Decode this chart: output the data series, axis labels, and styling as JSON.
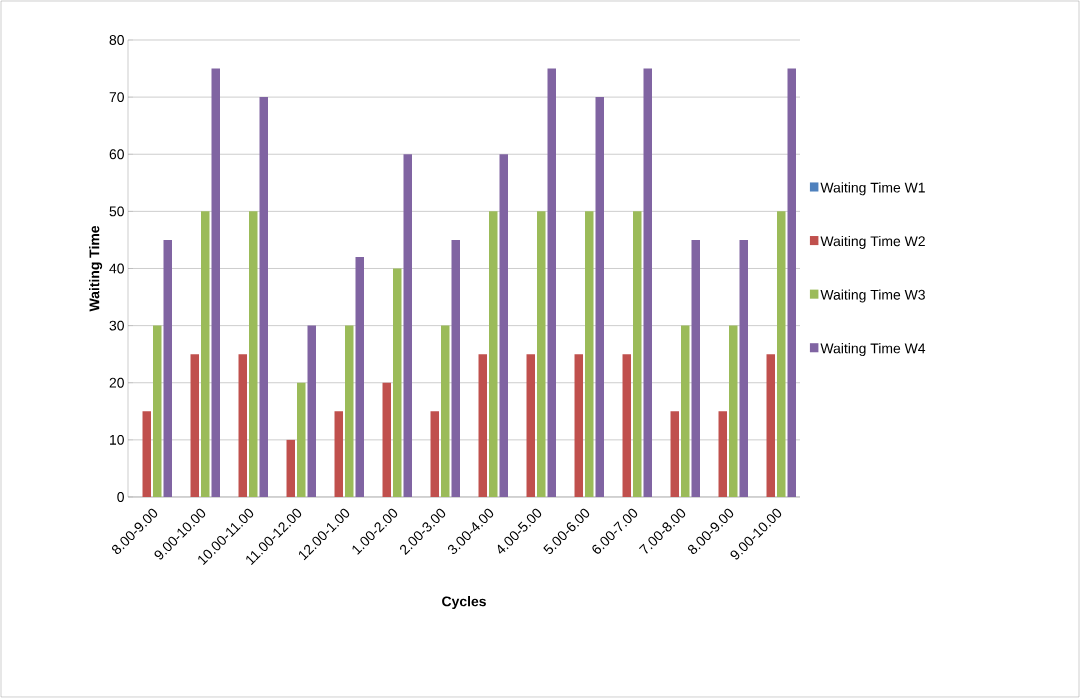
{
  "chart_data": {
    "type": "bar",
    "xlabel": "Cycles",
    "ylabel": "Waiting Time",
    "categories": [
      "8.00-9.00",
      "9.00-10.00",
      "10.00-11.00",
      "11.00-12.00",
      "12.00-1.00",
      "1.00-2.00",
      "2.00-3.00",
      "3.00-4.00",
      "4.00-5.00",
      "5.00-6.00",
      "6.00-7.00",
      "7.00-8.00",
      "8.00-9.00",
      "9.00-10.00"
    ],
    "series": [
      {
        "name": "Waiting Time W1",
        "color": "#4f81bd",
        "values": [
          0,
          0,
          0,
          0,
          0,
          0,
          0,
          0,
          0,
          0,
          0,
          0,
          0,
          0
        ]
      },
      {
        "name": "Waiting Time W2",
        "color": "#c0504d",
        "values": [
          15,
          25,
          25,
          10,
          15,
          20,
          15,
          25,
          25,
          25,
          25,
          15,
          15,
          25
        ]
      },
      {
        "name": "Waiting Time W3",
        "color": "#9bbb59",
        "values": [
          30,
          50,
          50,
          20,
          30,
          40,
          30,
          50,
          50,
          50,
          50,
          30,
          30,
          50
        ]
      },
      {
        "name": "Waiting Time W4",
        "color": "#8064a2",
        "values": [
          45,
          75,
          70,
          30,
          42,
          60,
          45,
          60,
          75,
          70,
          75,
          45,
          45,
          75
        ]
      }
    ],
    "ylim": [
      0,
      80
    ],
    "yticks": [
      0,
      10,
      20,
      30,
      40,
      50,
      60,
      70,
      80
    ],
    "grid": "y",
    "legend": "right"
  }
}
